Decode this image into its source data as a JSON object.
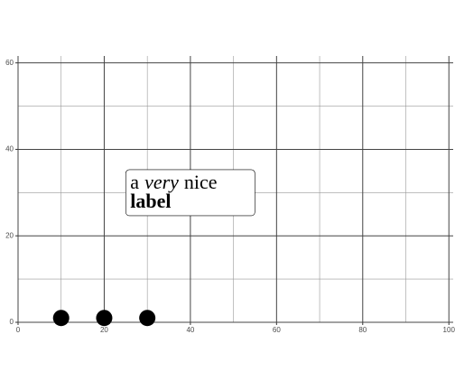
{
  "chart_data": {
    "type": "scatter",
    "x": [
      10,
      20,
      30
    ],
    "values": [
      1,
      1,
      1
    ],
    "color": "#000000",
    "xlim": [
      0,
      101
    ],
    "ylim": [
      0,
      61.6
    ],
    "xticks": [
      0,
      20,
      40,
      60,
      80,
      100
    ],
    "yticks": [
      0,
      20,
      40,
      60
    ],
    "minor_xticks": [
      10,
      30,
      50,
      70,
      90
    ],
    "minor_yticks": [
      10,
      30,
      50
    ],
    "grid": true,
    "annotation": {
      "x": 25,
      "y": 35.3,
      "lines": [
        [
          {
            "text": "a",
            "style": "plain"
          },
          {
            "text": "very",
            "style": "italic"
          },
          {
            "text": "nice",
            "style": "plain"
          }
        ],
        [
          {
            "text": "label",
            "style": "bold"
          }
        ]
      ]
    }
  }
}
